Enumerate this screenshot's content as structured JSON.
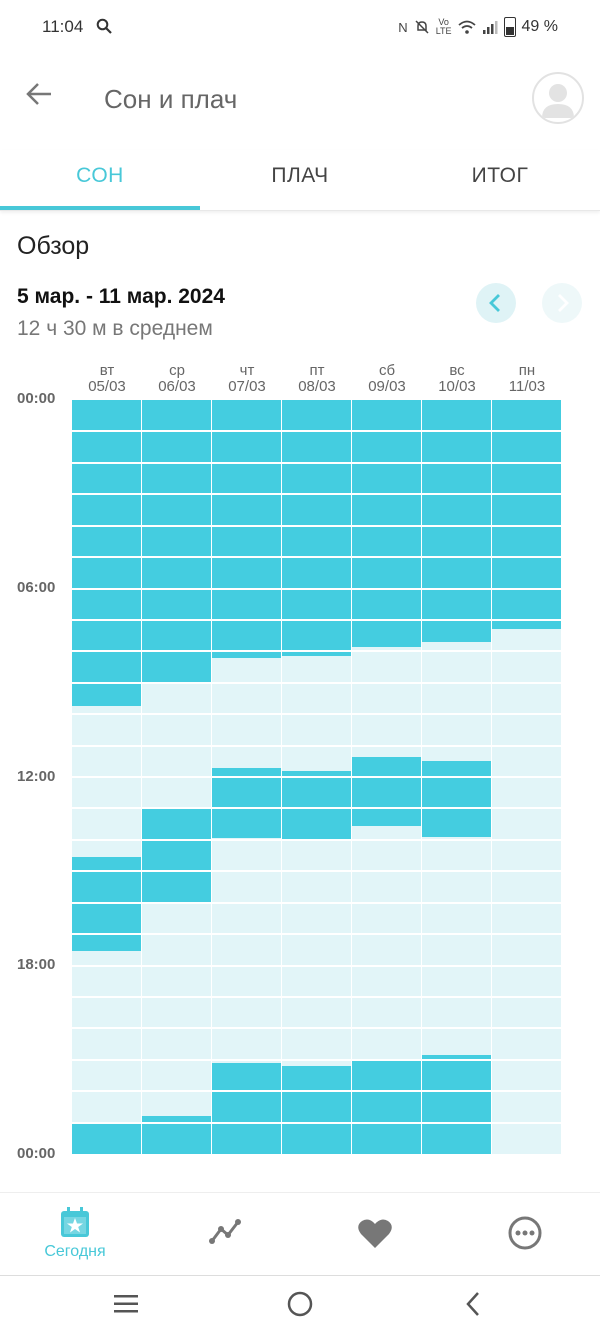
{
  "status_bar": {
    "time": "11:04",
    "battery": "49 %",
    "icons": [
      "search-icon",
      "nfc-icon",
      "mute-icon",
      "volte-icon",
      "wifi-icon",
      "signal-icon",
      "battery-icon"
    ]
  },
  "app_bar": {
    "title": "Сон и плач",
    "back_icon": "back-arrow-icon",
    "avatar_icon": "avatar-icon"
  },
  "tabs": [
    {
      "label": "СОН",
      "active": true
    },
    {
      "label": "ПЛАЧ",
      "active": false
    },
    {
      "label": "ИТОГ",
      "active": false
    }
  ],
  "overview": {
    "title": "Обзор",
    "date_range": "5 мар. - 11 мар. 2024",
    "average": "12 ч 30 м в среднем"
  },
  "colors": {
    "accent": "#48c8d8",
    "sleep": "#44cde0",
    "awake": "#e2f5f8"
  },
  "chart_data": {
    "type": "bar",
    "subtype": "timeline",
    "y_ticks": [
      "00:00",
      "06:00",
      "12:00",
      "18:00",
      "00:00"
    ],
    "y_range_hours": [
      0,
      24
    ],
    "days": [
      {
        "weekday": "вт",
        "date": "05/03",
        "sleep_hours": [
          [
            0,
            9.75
          ],
          [
            14.55,
            17.55
          ],
          [
            23.0,
            24
          ]
        ]
      },
      {
        "weekday": "ср",
        "date": "06/03",
        "sleep_hours": [
          [
            0,
            9.0
          ],
          [
            13.0,
            16.0
          ],
          [
            22.8,
            24
          ]
        ]
      },
      {
        "weekday": "чт",
        "date": "07/03",
        "sleep_hours": [
          [
            0,
            8.2
          ],
          [
            11.7,
            13.95
          ],
          [
            21.1,
            24
          ]
        ]
      },
      {
        "weekday": "пт",
        "date": "08/03",
        "sleep_hours": [
          [
            0,
            8.15
          ],
          [
            11.8,
            14.0
          ],
          [
            21.2,
            24
          ]
        ]
      },
      {
        "weekday": "сб",
        "date": "09/03",
        "sleep_hours": [
          [
            0,
            7.85
          ],
          [
            11.35,
            13.55
          ],
          [
            21.05,
            24
          ]
        ]
      },
      {
        "weekday": "вс",
        "date": "10/03",
        "sleep_hours": [
          [
            0,
            7.7
          ],
          [
            11.5,
            13.9
          ],
          [
            20.85,
            24
          ]
        ]
      },
      {
        "weekday": "пн",
        "date": "11/03",
        "sleep_hours": [
          [
            0,
            7.3
          ]
        ]
      }
    ]
  },
  "bottom_nav": [
    {
      "label": "Сегодня",
      "icon": "calendar-star-icon",
      "active": true
    },
    {
      "label": "",
      "icon": "trend-icon",
      "active": false
    },
    {
      "label": "",
      "icon": "heart-icon",
      "active": false
    },
    {
      "label": "",
      "icon": "more-icon",
      "active": false
    }
  ],
  "system_nav": [
    "recent-apps-icon",
    "home-icon",
    "back-icon"
  ]
}
